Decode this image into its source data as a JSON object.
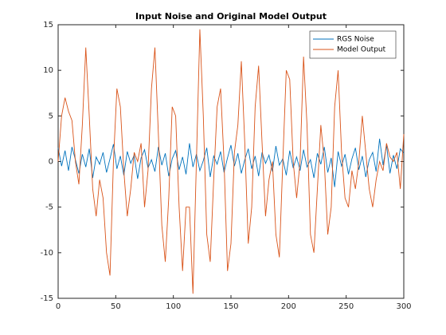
{
  "chart_data": {
    "type": "line",
    "title": "Input Noise and Original Model Output",
    "x": [
      0,
      3,
      6,
      9,
      12,
      15,
      18,
      21,
      24,
      27,
      30,
      33,
      36,
      39,
      42,
      45,
      48,
      51,
      54,
      57,
      60,
      63,
      66,
      69,
      72,
      75,
      78,
      81,
      84,
      87,
      90,
      93,
      96,
      99,
      102,
      105,
      108,
      111,
      114,
      117,
      120,
      123,
      126,
      129,
      132,
      135,
      138,
      141,
      144,
      147,
      150,
      153,
      156,
      159,
      162,
      165,
      168,
      171,
      174,
      177,
      180,
      183,
      186,
      189,
      192,
      195,
      198,
      201,
      204,
      207,
      210,
      213,
      216,
      219,
      222,
      225,
      228,
      231,
      234,
      237,
      240,
      243,
      246,
      249,
      252,
      255,
      258,
      261,
      264,
      267,
      270,
      273,
      276,
      279,
      282,
      285,
      288,
      291,
      294,
      297,
      300
    ],
    "series": [
      {
        "name": "RGS Noise",
        "color": "#0072BD",
        "values": [
          1.5,
          -0.5,
          1.2,
          -1.0,
          1.6,
          0.2,
          -1.3,
          0.8,
          -0.6,
          1.4,
          -1.8,
          0.5,
          -0.3,
          1.0,
          -1.2,
          0.3,
          1.9,
          -0.8,
          0.6,
          -1.5,
          1.1,
          -0.2,
          0.7,
          -1.9,
          0.4,
          1.3,
          -0.7,
          0.2,
          -1.1,
          1.6,
          -0.4,
          0.9,
          -1.6,
          0.3,
          1.2,
          -0.9,
          0.5,
          -1.4,
          2.0,
          -0.6,
          0.8,
          -1.0,
          0.1,
          1.5,
          -1.7,
          0.6,
          -0.3,
          1.1,
          -1.2,
          0.4,
          1.8,
          -0.5,
          0.9,
          -1.3,
          0.2,
          1.4,
          -0.8,
          0.6,
          -1.6,
          1.0,
          -0.2,
          0.7,
          -1.1,
          1.7,
          -0.4,
          0.3,
          -1.5,
          1.2,
          -0.7,
          0.5,
          -1.0,
          1.3,
          -0.6,
          0.2,
          -1.8,
          0.9,
          -0.3,
          1.6,
          -1.2,
          0.4,
          -2.8,
          1.1,
          -0.5,
          0.8,
          -1.4,
          0.3,
          1.5,
          -0.9,
          0.6,
          -1.7,
          0.2,
          1.0,
          -1.1,
          2.5,
          -0.4,
          1.8,
          -1.3,
          0.7,
          -0.8,
          1.4,
          0.9
        ]
      },
      {
        "name": "Model Output",
        "color": "#D95319",
        "values": [
          0,
          5,
          7,
          5.5,
          4.5,
          0,
          -2.5,
          4,
          12.5,
          5,
          -3,
          -6,
          -2,
          -4,
          -10,
          -12.5,
          0,
          8,
          6,
          -1,
          -6,
          -3,
          1,
          0,
          2,
          -5,
          -1,
          8,
          12.5,
          3,
          -7,
          -11,
          -4,
          6,
          5,
          -5,
          -12,
          -5,
          -5,
          -14.5,
          0,
          14.5,
          5,
          -8,
          -11,
          -2,
          6,
          8,
          0,
          -12,
          -9,
          1,
          4,
          11,
          2,
          -9,
          -5,
          6,
          10.5,
          2,
          -6,
          -2,
          0,
          -8,
          -10.5,
          0,
          10,
          9,
          0,
          -4,
          0,
          11.5,
          4,
          -8,
          -10,
          -3,
          4,
          0,
          -8,
          -5,
          6,
          10,
          1,
          -4,
          -5,
          -1,
          -3,
          0,
          5,
          1,
          -3,
          -5,
          -2,
          0,
          -1,
          2,
          0.5,
          0,
          1,
          -3,
          3
        ]
      }
    ],
    "xlim": [
      0,
      300
    ],
    "xticks": [
      0,
      50,
      100,
      150,
      200,
      250,
      300
    ],
    "ylim": [
      -15,
      15
    ],
    "yticks": [
      -15,
      -10,
      -5,
      0,
      5,
      10,
      15
    ],
    "legend": "northeast"
  }
}
